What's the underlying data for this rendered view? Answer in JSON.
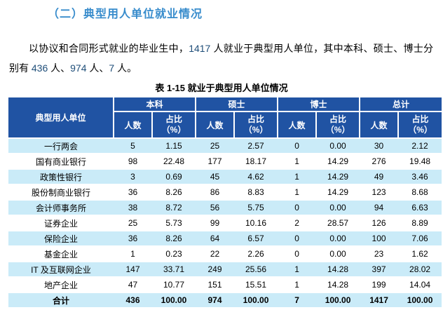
{
  "page": {
    "heading": "（二）典型用人单位就业情况",
    "paragraph_segments": [
      {
        "text": "以协议和合同形式就业的毕业生中，",
        "highlight": false
      },
      {
        "text": "1417",
        "highlight": true
      },
      {
        "text": " 人就业于典型用人单位，其中本科、硕士、博士分别有 ",
        "highlight": false
      },
      {
        "text": "436",
        "highlight": true
      },
      {
        "text": " 人、",
        "highlight": false
      },
      {
        "text": "974",
        "highlight": true
      },
      {
        "text": " 人、",
        "highlight": false
      },
      {
        "text": "7",
        "highlight": true
      },
      {
        "text": " 人。",
        "highlight": false
      }
    ]
  },
  "table": {
    "title": "表 1-15 就业于典型用人单位情况",
    "first_col_header": "典型用人单位",
    "group_headers": [
      "本科",
      "硕士",
      "博士",
      "总计"
    ],
    "sub_headers": {
      "count": "人数",
      "pct": "占比\n（%）"
    },
    "rows": [
      {
        "label": "一行两会",
        "values": [
          "5",
          "1.15",
          "25",
          "2.57",
          "0",
          "0.00",
          "30",
          "2.12"
        ]
      },
      {
        "label": "国有商业银行",
        "values": [
          "98",
          "22.48",
          "177",
          "18.17",
          "1",
          "14.29",
          "276",
          "19.48"
        ]
      },
      {
        "label": "政策性银行",
        "values": [
          "3",
          "0.69",
          "45",
          "4.62",
          "1",
          "14.29",
          "49",
          "3.46"
        ]
      },
      {
        "label": "股份制商业银行",
        "values": [
          "36",
          "8.26",
          "86",
          "8.83",
          "1",
          "14.29",
          "123",
          "8.68"
        ]
      },
      {
        "label": "会计师事务所",
        "values": [
          "38",
          "8.72",
          "56",
          "5.75",
          "0",
          "0.00",
          "94",
          "6.63"
        ]
      },
      {
        "label": "证券企业",
        "values": [
          "25",
          "5.73",
          "99",
          "10.16",
          "2",
          "28.57",
          "126",
          "8.89"
        ]
      },
      {
        "label": "保险企业",
        "values": [
          "36",
          "8.26",
          "64",
          "6.57",
          "0",
          "0.00",
          "100",
          "7.06"
        ]
      },
      {
        "label": "基金企业",
        "values": [
          "1",
          "0.23",
          "22",
          "2.26",
          "0",
          "0.00",
          "23",
          "1.62"
        ]
      },
      {
        "label": "IT 及互联网企业",
        "values": [
          "147",
          "33.71",
          "249",
          "25.56",
          "1",
          "14.28",
          "397",
          "28.02"
        ]
      },
      {
        "label": "地产企业",
        "values": [
          "47",
          "10.77",
          "151",
          "15.51",
          "1",
          "14.28",
          "199",
          "14.04"
        ]
      },
      {
        "label": "合计",
        "values": [
          "436",
          "100.00",
          "974",
          "100.00",
          "7",
          "100.00",
          "1417",
          "100.00"
        ],
        "is_total": true
      }
    ]
  },
  "colors": {
    "heading_blue": "#388CCC",
    "number_blue": "#1F4E79",
    "header_bg": "#2053A3",
    "stripe_blue": "#CAEBF8"
  }
}
